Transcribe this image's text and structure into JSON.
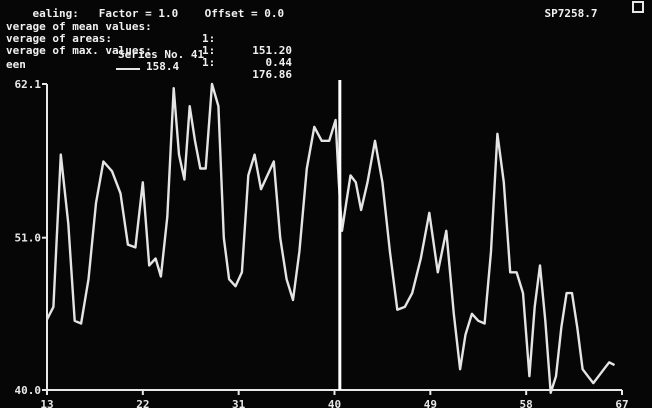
{
  "header": {
    "top_line_left": "ealing:   Factor = 1.0    Offset = 0.0",
    "top_right": "SP7258.7",
    "stats": [
      {
        "label": "verage of mean values:",
        "count": "1:",
        "value": "151.20"
      },
      {
        "label": "verage of areas:",
        "count": "1:",
        "value": "0.44"
      },
      {
        "label": "verage of max. values:",
        "count": "1:",
        "value": "176.86"
      }
    ],
    "unit_label": "een"
  },
  "legend": {
    "title": "Series No. 41",
    "value": "158.4"
  },
  "colors": {
    "background": "#060606",
    "trace": "#e4e4e4",
    "axis": "#e8e8e8",
    "cursor": "#ffffff"
  },
  "chart_data": {
    "type": "line",
    "title": "",
    "xlabel": "",
    "ylabel": "",
    "xlim": [
      13,
      67
    ],
    "ylim": [
      40.0,
      62.1
    ],
    "y_ticks": [
      {
        "value": 40.0,
        "label": "40.0"
      },
      {
        "value": 51.0,
        "label": "51.0"
      },
      {
        "value": 62.1,
        "label": "62.1"
      }
    ],
    "x_ticks": [
      {
        "value": 13,
        "label": "13"
      },
      {
        "value": 22,
        "label": "22"
      },
      {
        "value": 31,
        "label": "31"
      },
      {
        "value": 40,
        "label": "40"
      },
      {
        "value": 49,
        "label": "49"
      },
      {
        "value": 58,
        "label": "58"
      },
      {
        "value": 67,
        "label": "67"
      }
    ],
    "cursor_x": 40.5,
    "series": [
      {
        "x": [
          13,
          13.6,
          14.3,
          15.0,
          15.6,
          16.2,
          16.9,
          17.6,
          18.3,
          19.1,
          19.9,
          20.6,
          21.3,
          22.0,
          22.6,
          23.2,
          23.7,
          24.3,
          24.9,
          25.4,
          25.9,
          26.4,
          26.9,
          27.4,
          27.9,
          28.5,
          29.1,
          29.6,
          30.1,
          30.7,
          31.3,
          31.9,
          32.5,
          33.1,
          33.7,
          34.3,
          34.9,
          35.5,
          36.1,
          36.7,
          37.4,
          38.1,
          38.8,
          39.5,
          40.1,
          40.4,
          40.7,
          41.1,
          41.5,
          42.0,
          42.5,
          43.1,
          43.8,
          44.5,
          45.2,
          45.9,
          46.6,
          47.3,
          48.1,
          48.9,
          49.7,
          50.5,
          51.2,
          51.8,
          52.3,
          52.9,
          53.5,
          54.1,
          54.7,
          55.3,
          55.9,
          56.5,
          57.1,
          57.7,
          58.3,
          58.8,
          59.3,
          59.8,
          60.3,
          60.8,
          61.3,
          61.8,
          62.3,
          62.8,
          63.3,
          63.8,
          64.3,
          64.8,
          65.3,
          65.8,
          66.3
        ],
        "y": [
          45.1,
          46.0,
          57.0,
          52.0,
          45.0,
          44.8,
          48.0,
          53.5,
          56.5,
          55.8,
          54.2,
          50.5,
          50.3,
          55.0,
          49.0,
          49.5,
          48.2,
          52.5,
          61.8,
          57.0,
          55.2,
          60.5,
          58.0,
          56.0,
          56.0,
          62.1,
          60.5,
          51.0,
          48.0,
          47.5,
          48.5,
          55.5,
          57.0,
          54.5,
          55.5,
          56.5,
          51.0,
          48.0,
          46.5,
          50.0,
          56.0,
          59.0,
          58.0,
          58.0,
          59.5,
          55.0,
          51.5,
          53.5,
          55.5,
          55.0,
          53.0,
          55.0,
          58.0,
          55.0,
          50.0,
          45.8,
          46.0,
          47.0,
          49.5,
          52.8,
          48.5,
          51.5,
          45.5,
          41.5,
          44.0,
          45.5,
          45.0,
          44.8,
          50.0,
          58.5,
          55.0,
          48.5,
          48.5,
          47.0,
          41.0,
          46.0,
          49.0,
          45.0,
          39.8,
          41.0,
          44.5,
          47.0,
          47.0,
          44.5,
          41.5,
          41.0,
          40.5,
          41.0,
          41.5,
          42.0,
          41.8
        ]
      }
    ]
  }
}
